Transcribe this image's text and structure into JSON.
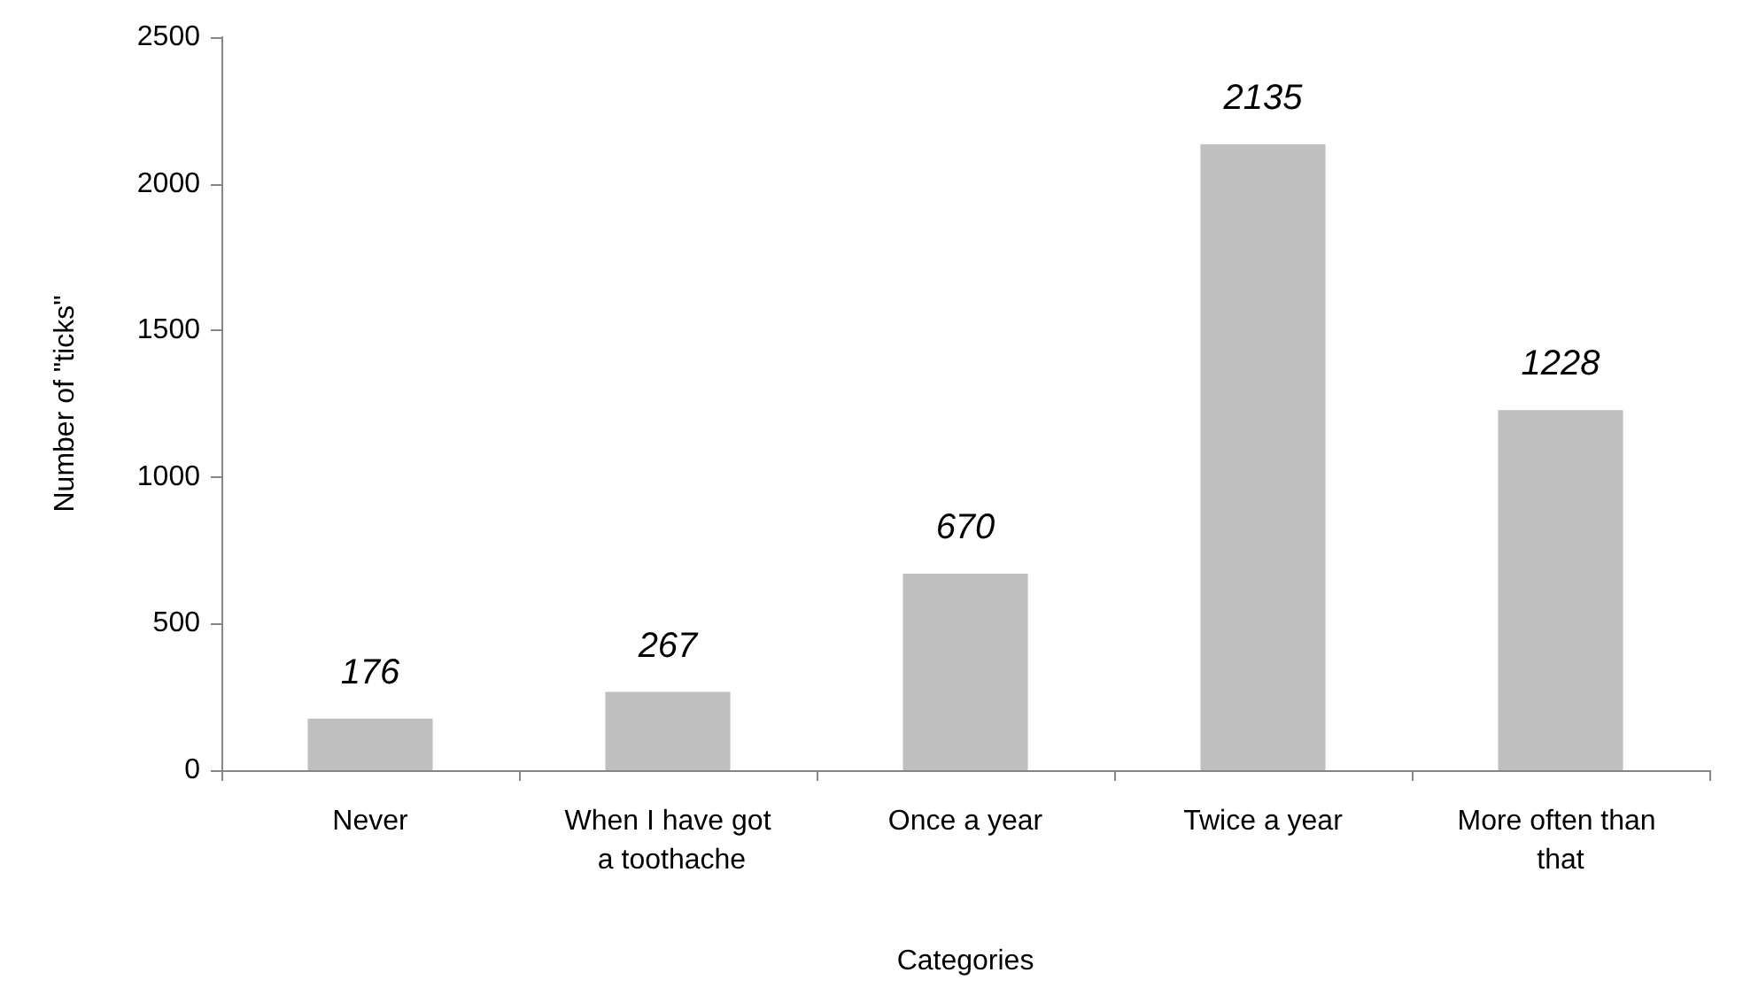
{
  "chart_data": {
    "type": "bar",
    "xlabel": "Categories",
    "ylabel": "Number of \"ticks\"",
    "categories": [
      "Never",
      "When I have got a toothache",
      "Once a year",
      "Twice a year",
      "More often than that"
    ],
    "values": [
      176,
      267,
      670,
      2135,
      1228
    ],
    "color": "#bfbfbf",
    "ylim": [
      0,
      2500
    ],
    "yticks": [
      0,
      500,
      1000,
      1500,
      2000,
      2500
    ],
    "grid": false,
    "data_labels": true
  }
}
